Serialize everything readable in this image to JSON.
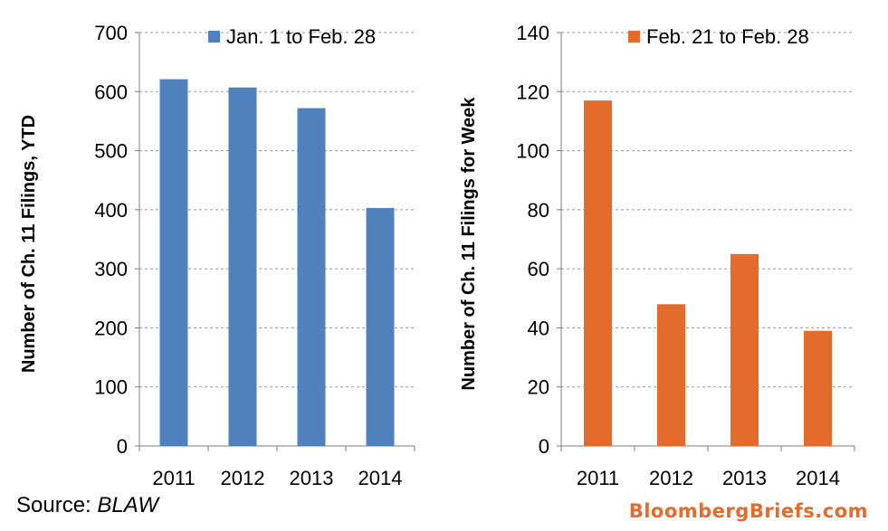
{
  "chart_data": [
    {
      "type": "bar",
      "categories": [
        "2011",
        "2012",
        "2013",
        "2014"
      ],
      "series": [
        {
          "name": "Jan. 1 to Feb. 28",
          "values": [
            621,
            607,
            572,
            403
          ]
        }
      ],
      "ylabel": "Number of Ch. 11 Filings, YTD",
      "xlabel": "",
      "ylim": [
        0,
        700
      ],
      "yticks": [
        0,
        100,
        200,
        300,
        400,
        500,
        600,
        700
      ],
      "grid": true,
      "legend": "top-right",
      "color": "#4f81bd"
    },
    {
      "type": "bar",
      "categories": [
        "2011",
        "2012",
        "2013",
        "2014"
      ],
      "series": [
        {
          "name": "Feb. 21 to Feb. 28",
          "values": [
            117,
            48,
            65,
            39
          ]
        }
      ],
      "ylabel": "Number of Ch. 11 Filings for Week",
      "xlabel": "",
      "ylim": [
        0,
        140
      ],
      "yticks": [
        0,
        20,
        40,
        60,
        80,
        100,
        120,
        140
      ],
      "grid": true,
      "legend": "top-right",
      "color": "#e36c2d"
    }
  ],
  "footer": {
    "source_label": "Source: ",
    "source_name": "BLAW",
    "brand": "BloombergBriefs.com"
  }
}
